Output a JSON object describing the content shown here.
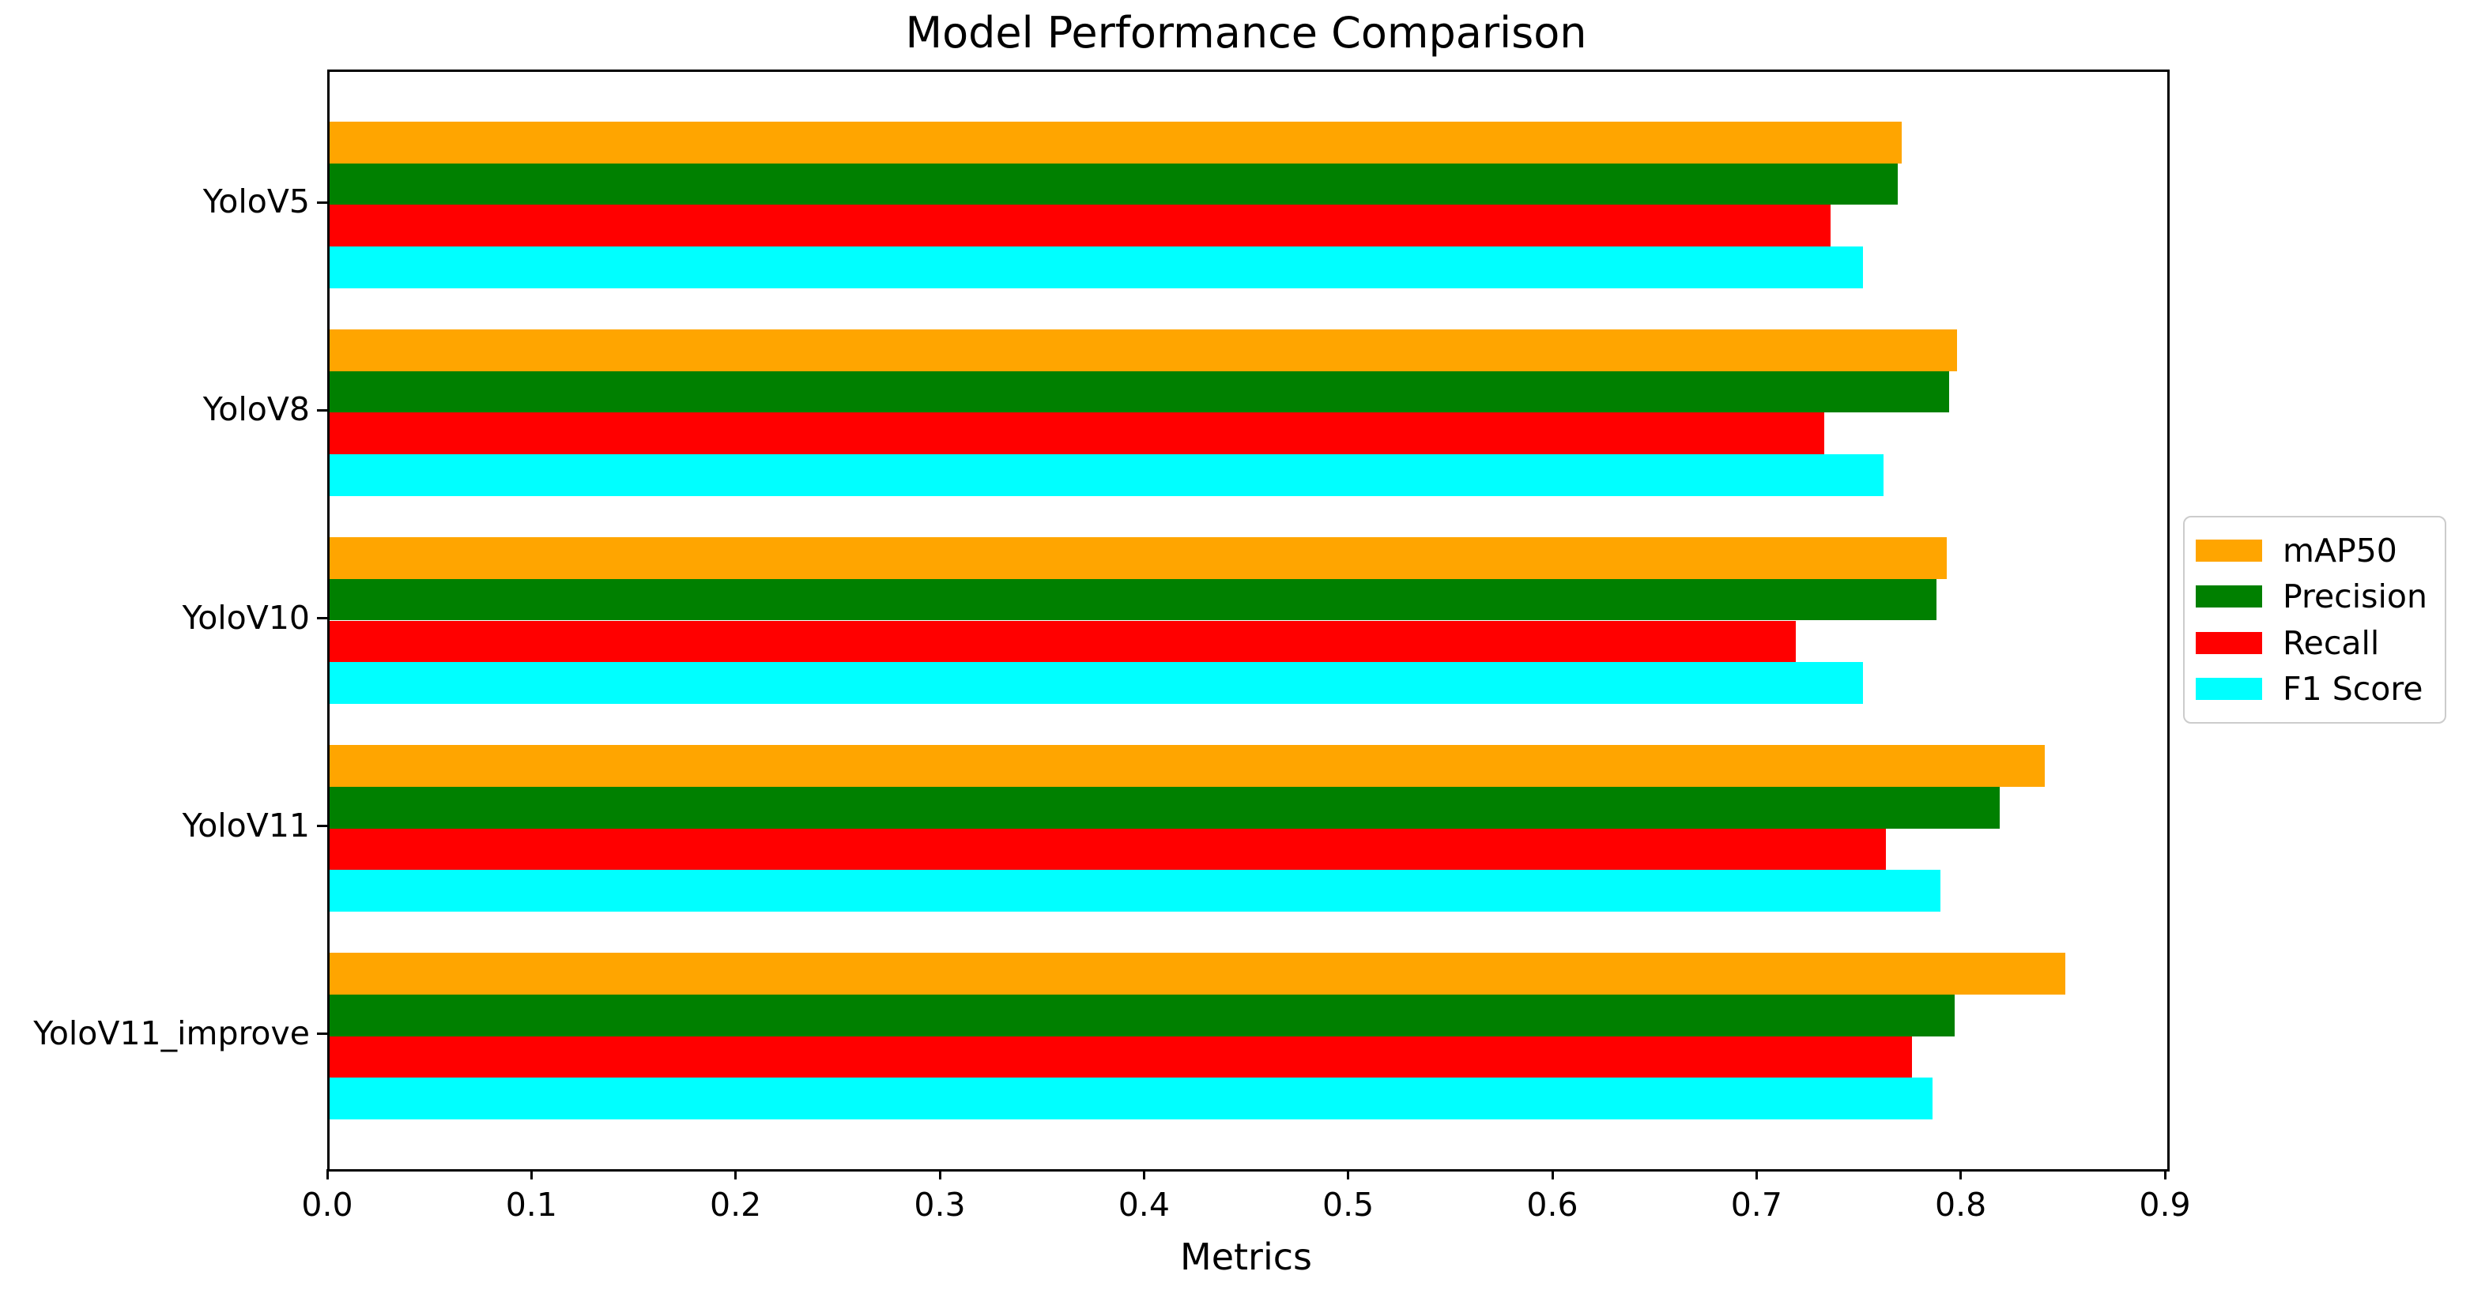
{
  "title": "Model Performance Comparison",
  "xlabel": "Metrics",
  "chart_data": {
    "type": "bar",
    "orientation": "horizontal",
    "title": "Model Performance Comparison",
    "xlabel": "Metrics",
    "ylabel": "",
    "categories": [
      "YoloV5",
      "YoloV8",
      "YoloV10",
      "YoloV11",
      "YoloV11_improve"
    ],
    "series": [
      {
        "name": "mAP50",
        "color": "#FFA500",
        "values": [
          0.77,
          0.797,
          0.792,
          0.84,
          0.85
        ]
      },
      {
        "name": "Precision",
        "color": "#008000",
        "values": [
          0.768,
          0.793,
          0.787,
          0.818,
          0.796
        ]
      },
      {
        "name": "Recall",
        "color": "#FF0000",
        "values": [
          0.735,
          0.732,
          0.718,
          0.762,
          0.775
        ]
      },
      {
        "name": "F1 Score",
        "color": "#00FFFF",
        "values": [
          0.751,
          0.761,
          0.751,
          0.789,
          0.785
        ]
      }
    ],
    "xlim": [
      0.0,
      0.9
    ],
    "xticks": [
      "0.0",
      "0.1",
      "0.2",
      "0.3",
      "0.4",
      "0.5",
      "0.6",
      "0.7",
      "0.8",
      "0.9"
    ],
    "grid": false,
    "legend_position": "outside-center-right",
    "axis_color": "#000000",
    "background_color": "#ffffff"
  }
}
